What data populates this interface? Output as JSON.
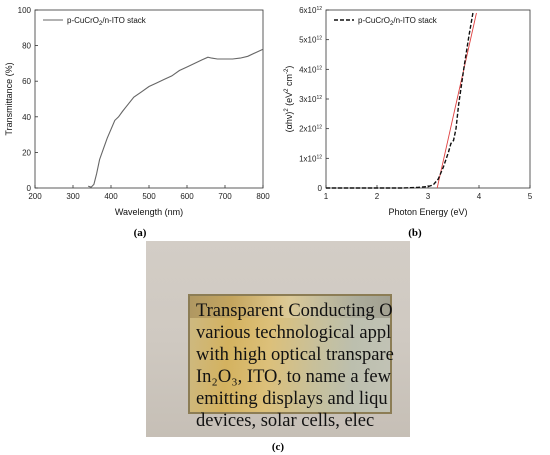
{
  "panel_labels": {
    "a": "(a)",
    "b": "(b)",
    "c": "(c)"
  },
  "chart_data": [
    {
      "type": "line",
      "panel": "(a)",
      "xlabel": "Wavelength (nm)",
      "ylabel": "Transmittance (%)",
      "xlim": [
        200,
        800
      ],
      "ylim": [
        0,
        100
      ],
      "xticks": [
        "200",
        "300",
        "400",
        "500",
        "600",
        "700",
        "800"
      ],
      "yticks": [
        "0",
        "20",
        "40",
        "60",
        "80",
        "100"
      ],
      "grid": false,
      "legend_position": "top-left",
      "series": [
        {
          "name": "p-CuCrO₂/n-ITO stack",
          "name_parts": {
            "pre": "p-CuCrO",
            "sub": "2",
            "post": "/n-ITO stack"
          },
          "color": "#666666",
          "style": "solid",
          "x": [
            340,
            348,
            355,
            362,
            370,
            380,
            390,
            400,
            410,
            420,
            430,
            445,
            460,
            480,
            500,
            520,
            540,
            560,
            580,
            600,
            620,
            640,
            655,
            665,
            680,
            700,
            720,
            740,
            760,
            780,
            800
          ],
          "y": [
            1,
            0.5,
            2,
            8,
            16,
            22,
            28,
            33,
            38,
            40,
            43,
            47,
            51,
            54,
            57,
            59,
            61,
            63,
            66,
            68,
            70,
            72,
            73.5,
            73,
            72.5,
            72.5,
            72.5,
            73,
            74,
            76,
            78
          ]
        }
      ]
    },
    {
      "type": "line",
      "panel": "(b)",
      "xlabel": "Photon Energy (eV)",
      "ylabel": "(αhν)² (eV² cm⁻²)",
      "ylabel_parts": {
        "a": "(αhν)",
        "b": "2",
        "c": " (eV",
        "d": "2",
        "e": " cm",
        "f": "-2",
        "g": ")"
      },
      "xlim": [
        1,
        5
      ],
      "ylim": [
        0,
        6000000000000.0
      ],
      "xticks": [
        "1",
        "2",
        "3",
        "4",
        "5"
      ],
      "ytick_values": [
        0,
        1000000000000.0,
        2000000000000.0,
        3000000000000.0,
        4000000000000.0,
        5000000000000.0,
        6000000000000.0
      ],
      "ytick_mantissa": [
        "0",
        "1x10",
        "2x10",
        "3x10",
        "4x10",
        "5x10",
        "6x10"
      ],
      "ytick_exponent": "12",
      "grid": false,
      "legend_position": "top-left",
      "series": [
        {
          "name": "p-CuCrO₂/n-ITO stack",
          "name_parts": {
            "pre": "p-CuCrO",
            "sub": "2",
            "post": "/n-ITO stack"
          },
          "color": "#111111",
          "style": "dashed",
          "x": [
            1.0,
            1.5,
            2.0,
            2.5,
            2.8,
            3.0,
            3.1,
            3.2,
            3.3,
            3.4,
            3.45,
            3.5,
            3.55,
            3.6,
            3.7,
            3.8,
            3.88
          ],
          "y": [
            0,
            0,
            0,
            0,
            20000000000.0,
            50000000000.0,
            100000000000.0,
            300000000000.0,
            700000000000.0,
            1200000000000.0,
            1500000000000.0,
            1600000000000.0,
            2000000000000.0,
            2800000000000.0,
            4000000000000.0,
            5100000000000.0,
            5900000000000.0
          ]
        }
      ],
      "fit_line": {
        "color": "#e04040",
        "x": [
          3.18,
          3.95
        ],
        "y": [
          0,
          5900000000000.0
        ]
      }
    }
  ],
  "photo": {
    "description_lines": [
      "Transparent Conducting O",
      "various technological appl",
      "with high optical transpare",
      "In₂O₃, ITO, to name a few",
      "emitting displays and liqu",
      "devices, solar cells, elec"
    ]
  }
}
